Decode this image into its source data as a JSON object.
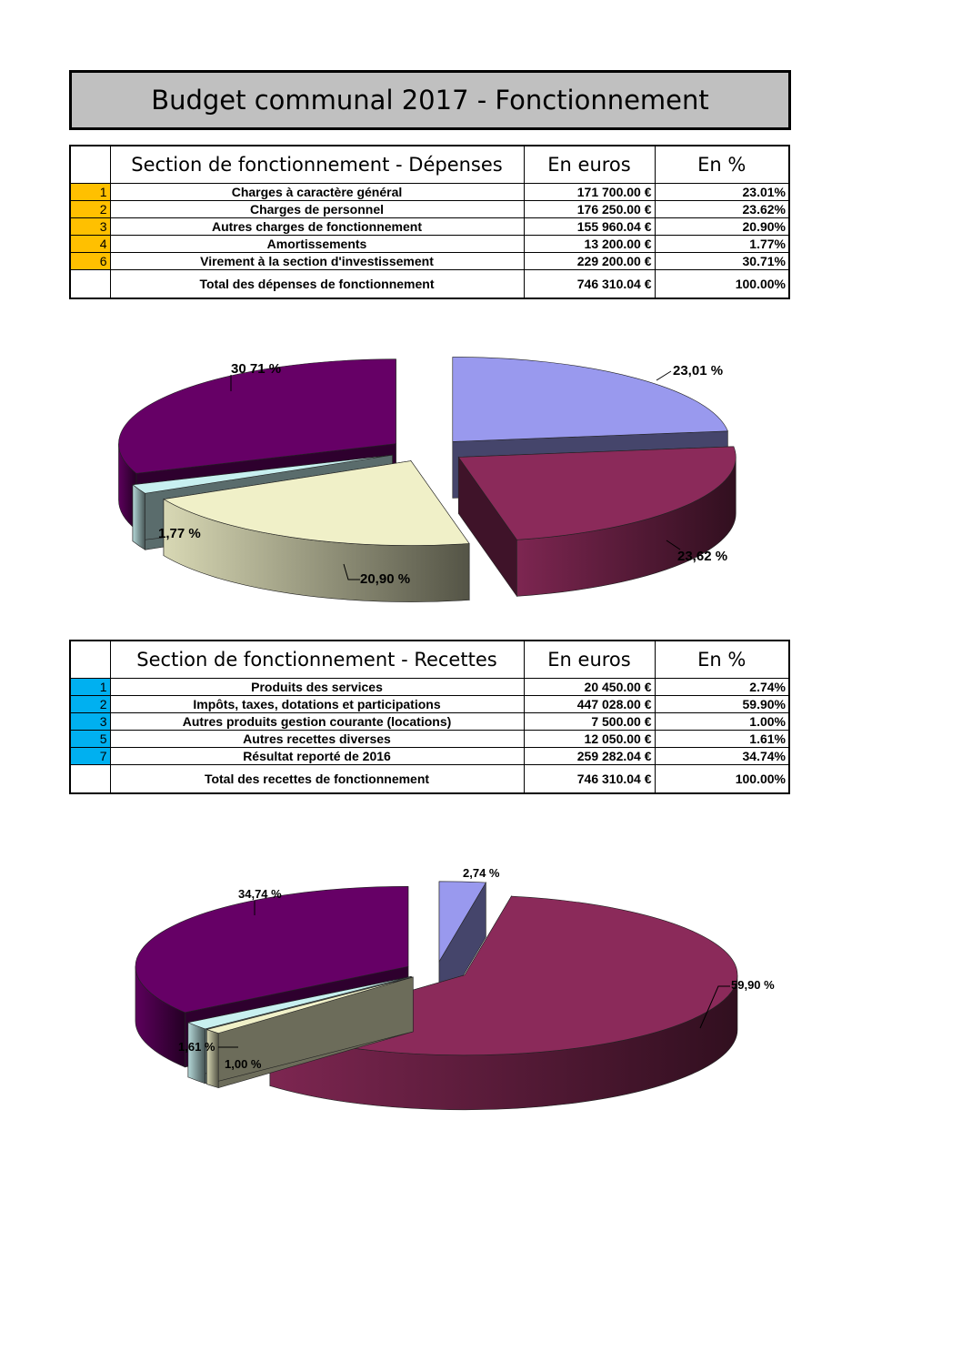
{
  "title": "Budget communal 2017 - Fonctionnement",
  "depenses": {
    "header": [
      "Section de fonctionnement - Dépenses",
      "En euros",
      "En %"
    ],
    "rows": [
      {
        "num": "1",
        "label": "Charges à caractère général",
        "euros": "171 700.00 €",
        "pct": "23.01%"
      },
      {
        "num": "2",
        "label": "Charges de personnel",
        "euros": "176 250.00 €",
        "pct": "23.62%"
      },
      {
        "num": "3",
        "label": "Autres charges de fonctionnement",
        "euros": "155 960.04 €",
        "pct": "20.90%"
      },
      {
        "num": "4",
        "label": "Amortissements",
        "euros": "13 200.00 €",
        "pct": "1.77%"
      },
      {
        "num": "6",
        "label": "Virement à la section d'investissement",
        "euros": "229 200.00 €",
        "pct": "30.71%"
      }
    ],
    "total": {
      "label": "Total des dépenses de fonctionnement",
      "euros": "746 310.04 €",
      "pct": "100.00%"
    }
  },
  "recettes": {
    "header": [
      "Section de fonctionnement - Recettes",
      "En euros",
      "En %"
    ],
    "rows": [
      {
        "num": "1",
        "label": "Produits des services",
        "euros": "20 450.00 €",
        "pct": "2.74%"
      },
      {
        "num": "2",
        "label": "Impôts, taxes, dotations et participations",
        "euros": "447 028.00 €",
        "pct": "59.90%"
      },
      {
        "num": "3",
        "label": "Autres produits gestion courante (locations)",
        "euros": "7 500.00 €",
        "pct": "1.00%"
      },
      {
        "num": "5",
        "label": "Autres recettes diverses",
        "euros": "12 050.00 €",
        "pct": "1.61%"
      },
      {
        "num": "7",
        "label": "Résultat reporté de 2016",
        "euros": "259 282.04 €",
        "pct": "34.74%"
      }
    ],
    "total": {
      "label": "Total des recettes de fonctionnement",
      "euros": "746 310.04 €",
      "pct": "100.00%"
    }
  },
  "chart_data": [
    {
      "type": "pie",
      "categories": [
        "Charges à caractère général",
        "Charges de personnel",
        "Autres charges de fonctionnement",
        "Amortissements",
        "Virement à la section d'investissement"
      ],
      "values": [
        23.01,
        23.62,
        20.9,
        1.77,
        30.71
      ],
      "data_labels": [
        "23,01 %",
        "23,62 %",
        "20,90 %",
        "1,77 %",
        "30 71 %"
      ],
      "colors": [
        "#9999ee",
        "#8b2a5a",
        "#f0f0c8",
        "#c8f0f0",
        "#660066"
      ],
      "style": "3d-exploded"
    },
    {
      "type": "pie",
      "categories": [
        "Produits des services",
        "Impôts, taxes, dotations et participations",
        "Autres produits gestion courante (locations)",
        "Autres recettes diverses",
        "Résultat reporté de 2016"
      ],
      "values": [
        2.74,
        59.9,
        1.0,
        1.61,
        34.74
      ],
      "data_labels": [
        "2,74 %",
        "59,90 %",
        "1,00 %",
        "1,61 %",
        "34,74 %"
      ],
      "colors": [
        "#9999ee",
        "#8b2a5a",
        "#f0f0c8",
        "#c8f0f0",
        "#660066"
      ],
      "style": "3d-exploded"
    }
  ]
}
